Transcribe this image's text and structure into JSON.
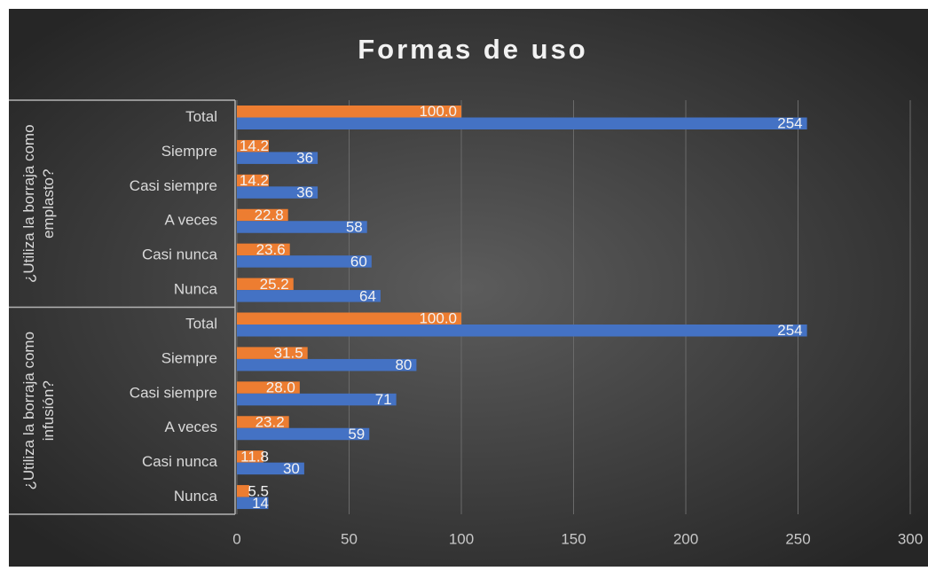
{
  "chart_data": {
    "type": "grouped-bar-horizontal",
    "title": "Formas de uso",
    "groups": [
      {
        "label": "¿Utiliza la borraja como emplasto?",
        "categories": [
          "Total",
          "Siempre",
          "Casi siempre",
          "A veces",
          "Casi nunca",
          "Nunca"
        ]
      },
      {
        "label": "¿Utiliza la borraja como infusión?",
        "categories": [
          "Total",
          "Siempre",
          "Casi siempre",
          "A veces",
          "Casi nunca",
          "Nunca"
        ]
      }
    ],
    "series": [
      {
        "color": "#ed7d31",
        "values": [
          [
            100.0,
            14.2,
            14.2,
            22.8,
            23.6,
            25.2
          ],
          [
            100.0,
            31.5,
            28.0,
            23.2,
            11.8,
            5.5
          ]
        ],
        "value_labels": [
          [
            "100.0",
            "14.2",
            "14.2",
            "22.8",
            "23.6",
            "25.2"
          ],
          [
            "100.0",
            "31.5",
            "28.0",
            "23.2",
            "11.8",
            "5.5"
          ]
        ]
      },
      {
        "color": "#4472c4",
        "values": [
          [
            254,
            36,
            36,
            58,
            60,
            64
          ],
          [
            254,
            80,
            71,
            59,
            30,
            14
          ]
        ]
      }
    ],
    "xlim": [
      0,
      300
    ],
    "xticks": [
      0,
      50,
      100,
      150,
      200,
      250,
      300
    ],
    "grid": true
  }
}
